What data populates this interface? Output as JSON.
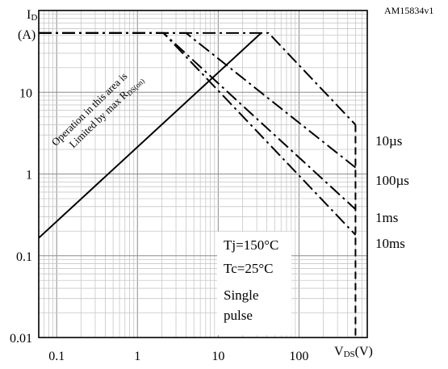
{
  "figure_id": "AM15834v1",
  "y_axis_label": {
    "main": "I",
    "sub": "D",
    "unit": "(A)"
  },
  "x_axis_label": {
    "main": "V",
    "sub": "DS",
    "unit": "(V)"
  },
  "rds_annotation": {
    "line1": "Operation in this area is",
    "line2_prefix": "Limited by max R",
    "line2_sub": "DS(on)"
  },
  "conditions": {
    "tj": "Tj=150°C",
    "tc": "Tc=25°C",
    "pulse_line1": "Single",
    "pulse_line2": "pulse"
  },
  "chart_data": {
    "type": "line",
    "title": "",
    "xscale": "log",
    "yscale": "log",
    "xlim": [
      0.06,
      700
    ],
    "ylim": [
      0.01,
      100
    ],
    "xticks": [
      0.1,
      1,
      10,
      100
    ],
    "xtick_labels": [
      "0.1",
      "1",
      "10",
      "100"
    ],
    "yticks": [
      0.01,
      0.1,
      1,
      10
    ],
    "ytick_labels": [
      "0.01",
      "0.1",
      "1",
      "10"
    ],
    "grid": true,
    "series": [
      {
        "name": "10µs",
        "style": "dashdot",
        "points": [
          [
            0.06,
            53
          ],
          [
            42,
            53
          ],
          [
            500,
            4
          ]
        ]
      },
      {
        "name": "100µs",
        "style": "dashdot",
        "points": [
          [
            0.06,
            53
          ],
          [
            4,
            53
          ],
          [
            500,
            1.2
          ]
        ]
      },
      {
        "name": "1ms",
        "style": "dashdot",
        "points": [
          [
            0.06,
            53
          ],
          [
            2.1,
            53
          ],
          [
            500,
            0.37
          ]
        ]
      },
      {
        "name": "10ms",
        "style": "dashdot",
        "points": [
          [
            0.06,
            53
          ],
          [
            2.1,
            53
          ],
          [
            500,
            0.18
          ]
        ]
      },
      {
        "name": "",
        "style": "dashed",
        "points": [
          [
            500,
            4
          ],
          [
            500,
            0.01
          ]
        ]
      },
      {
        "name": "",
        "style": "solid",
        "points": [
          [
            0.06,
            0.165
          ],
          [
            34,
            53
          ]
        ]
      }
    ]
  }
}
